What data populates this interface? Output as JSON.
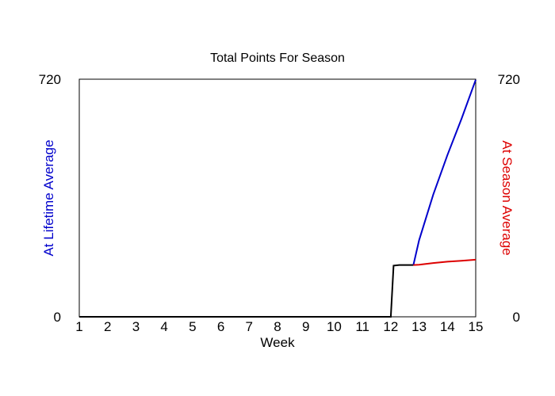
{
  "chart_data": {
    "type": "line",
    "title": "Total Points For Season",
    "xlabel": "Week",
    "ylabel_left": "At Lifetime Average",
    "ylabel_right": "At Season Average",
    "xlim": [
      1,
      15
    ],
    "ylim": [
      0,
      720
    ],
    "x_ticks": [
      1,
      2,
      3,
      4,
      5,
      6,
      7,
      8,
      9,
      10,
      11,
      12,
      13,
      14,
      15
    ],
    "y_ticks_left": [
      0,
      720
    ],
    "y_ticks_right": [
      0,
      720
    ],
    "grid": false,
    "series": [
      {
        "color": "#000000",
        "x": [
          1,
          12,
          12.1,
          12.3,
          12.8
        ],
        "y": [
          0,
          0,
          155,
          157,
          157
        ]
      },
      {
        "color": "#0000cc",
        "x": [
          12.8,
          13.0,
          13.5,
          14.0,
          14.5,
          15.0
        ],
        "y": [
          157,
          232,
          370,
          490,
          600,
          718
        ]
      },
      {
        "color": "#dd0000",
        "x": [
          12.8,
          13.0,
          13.5,
          14.0,
          14.5,
          15.0
        ],
        "y": [
          157,
          158,
          163,
          167,
          170,
          173
        ]
      }
    ]
  }
}
